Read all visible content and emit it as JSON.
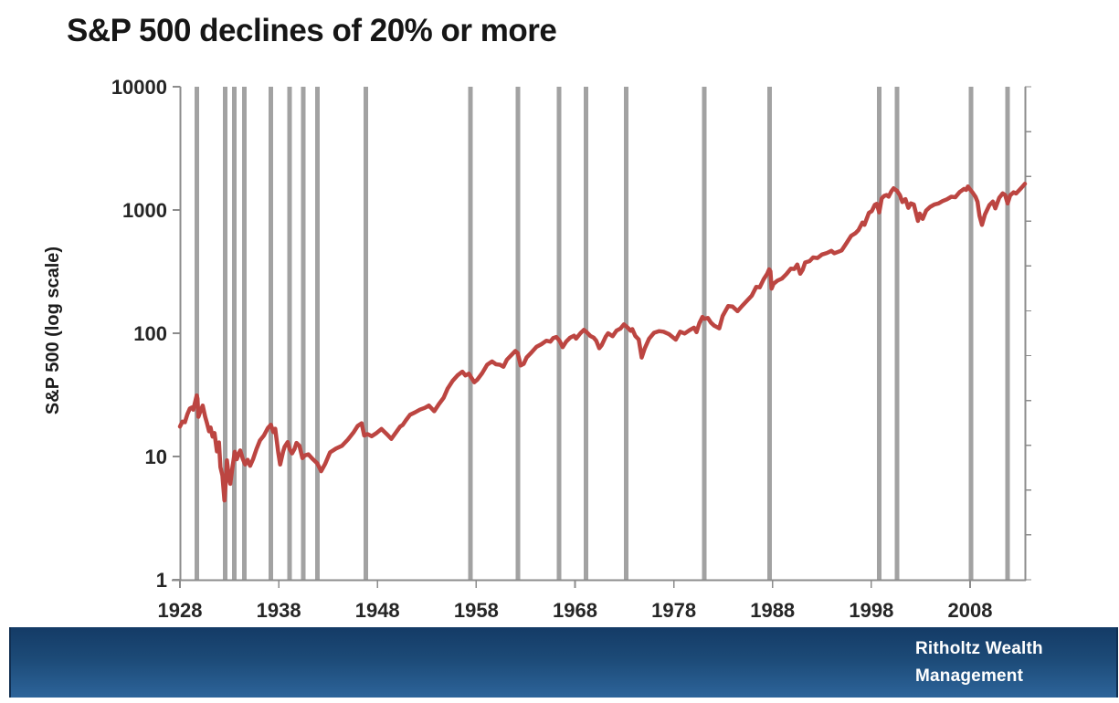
{
  "title": "S&P 500 declines of 20% or more",
  "footer": {
    "brand_line1": "Ritholtz Wealth",
    "brand_line2": "Management"
  },
  "colors": {
    "line": "#bc4541",
    "bear_band": "#a2a2a2",
    "axis": "#8c8c8c",
    "tick_label": "#262626",
    "footer_top": "#143b66",
    "footer_bottom": "#2d649a",
    "footer_text": "#ffffff"
  },
  "chart_data": {
    "type": "line",
    "title": "S&P 500 declines of 20% or more",
    "xlabel": "",
    "ylabel": "S&P 500 (log scale)",
    "y_scale": "log",
    "ylim": [
      1,
      10000
    ],
    "y_ticks": [
      10000,
      1000,
      100,
      10,
      1
    ],
    "x_ticks": [
      1928,
      1938,
      1948,
      1958,
      1968,
      1978,
      1988,
      1998,
      2008
    ],
    "x_range": [
      1928,
      2013.55
    ],
    "grid": false,
    "legend": false,
    "decline_markers": {
      "label": "declines of 20% or more",
      "years": [
        1929.7,
        1932.6,
        1933.5,
        1934.5,
        1937.2,
        1939.1,
        1940.5,
        1941.9,
        1946.8,
        1957.4,
        1962.2,
        1966.4,
        1969.1,
        1973.2,
        1981.1,
        1987.7,
        1998.8,
        2000.6,
        2008.1,
        2011.8
      ]
    },
    "series": [
      {
        "name": "S&P 500",
        "points": [
          [
            1928.0,
            17.5
          ],
          [
            1928.25,
            19.2
          ],
          [
            1928.5,
            19.0
          ],
          [
            1928.75,
            22.0
          ],
          [
            1929.0,
            24.5
          ],
          [
            1929.2,
            25.0
          ],
          [
            1929.35,
            24.0
          ],
          [
            1929.55,
            28.0
          ],
          [
            1929.7,
            31.3
          ],
          [
            1929.78,
            29.5
          ],
          [
            1929.87,
            21.0
          ],
          [
            1930.0,
            22.5
          ],
          [
            1930.3,
            25.9
          ],
          [
            1930.55,
            21.0
          ],
          [
            1930.75,
            18.5
          ],
          [
            1930.95,
            16.0
          ],
          [
            1931.1,
            17.2
          ],
          [
            1931.3,
            14.5
          ],
          [
            1931.5,
            15.5
          ],
          [
            1931.75,
            11.0
          ],
          [
            1931.95,
            13.0
          ],
          [
            1932.1,
            8.2
          ],
          [
            1932.3,
            7.0
          ],
          [
            1932.5,
            4.4
          ],
          [
            1932.65,
            6.5
          ],
          [
            1932.75,
            9.3
          ],
          [
            1932.95,
            6.8
          ],
          [
            1933.1,
            6.0
          ],
          [
            1933.3,
            8.0
          ],
          [
            1933.55,
            10.9
          ],
          [
            1933.75,
            9.5
          ],
          [
            1933.95,
            10.5
          ],
          [
            1934.1,
            11.2
          ],
          [
            1934.35,
            9.6
          ],
          [
            1934.6,
            8.6
          ],
          [
            1934.85,
            9.4
          ],
          [
            1935.1,
            8.4
          ],
          [
            1935.4,
            9.5
          ],
          [
            1935.75,
            11.5
          ],
          [
            1936.1,
            13.5
          ],
          [
            1936.5,
            14.8
          ],
          [
            1936.9,
            17.0
          ],
          [
            1937.2,
            18.1
          ],
          [
            1937.45,
            15.8
          ],
          [
            1937.65,
            16.8
          ],
          [
            1937.95,
            10.8
          ],
          [
            1938.15,
            8.6
          ],
          [
            1938.45,
            11.0
          ],
          [
            1938.6,
            12.0
          ],
          [
            1938.9,
            13.1
          ],
          [
            1939.1,
            11.5
          ],
          [
            1939.35,
            10.6
          ],
          [
            1939.6,
            11.5
          ],
          [
            1939.8,
            12.9
          ],
          [
            1940.1,
            12.2
          ],
          [
            1940.4,
            9.7
          ],
          [
            1940.65,
            10.2
          ],
          [
            1941.0,
            10.4
          ],
          [
            1941.4,
            9.6
          ],
          [
            1941.9,
            8.8
          ],
          [
            1942.3,
            7.6
          ],
          [
            1942.7,
            8.7
          ],
          [
            1943.2,
            10.8
          ],
          [
            1943.8,
            11.6
          ],
          [
            1944.4,
            12.2
          ],
          [
            1945.0,
            13.7
          ],
          [
            1945.6,
            15.8
          ],
          [
            1946.0,
            17.7
          ],
          [
            1946.4,
            18.6
          ],
          [
            1946.65,
            14.8
          ],
          [
            1947.0,
            15.2
          ],
          [
            1947.4,
            14.6
          ],
          [
            1947.9,
            15.5
          ],
          [
            1948.4,
            16.7
          ],
          [
            1948.9,
            15.3
          ],
          [
            1949.4,
            13.9
          ],
          [
            1949.9,
            15.8
          ],
          [
            1950.3,
            17.5
          ],
          [
            1950.55,
            18.0
          ],
          [
            1950.9,
            19.8
          ],
          [
            1951.3,
            21.8
          ],
          [
            1951.8,
            22.8
          ],
          [
            1952.3,
            24.0
          ],
          [
            1952.8,
            24.8
          ],
          [
            1953.2,
            25.9
          ],
          [
            1953.75,
            23.3
          ],
          [
            1954.2,
            26.5
          ],
          [
            1954.7,
            30.0
          ],
          [
            1955.1,
            35.5
          ],
          [
            1955.6,
            41.0
          ],
          [
            1956.1,
            45.5
          ],
          [
            1956.6,
            48.8
          ],
          [
            1956.9,
            45.5
          ],
          [
            1957.25,
            47.0
          ],
          [
            1957.8,
            40.0
          ],
          [
            1958.1,
            42.0
          ],
          [
            1958.6,
            47.5
          ],
          [
            1959.1,
            55.5
          ],
          [
            1959.6,
            59.0
          ],
          [
            1960.0,
            56.0
          ],
          [
            1960.4,
            55.5
          ],
          [
            1960.75,
            53.5
          ],
          [
            1961.1,
            61.0
          ],
          [
            1961.55,
            66.5
          ],
          [
            1961.95,
            71.7
          ],
          [
            1962.2,
            69.0
          ],
          [
            1962.5,
            54.8
          ],
          [
            1962.8,
            56.5
          ],
          [
            1963.1,
            63.5
          ],
          [
            1963.6,
            70.0
          ],
          [
            1964.1,
            77.5
          ],
          [
            1964.6,
            81.5
          ],
          [
            1965.1,
            87.0
          ],
          [
            1965.5,
            85.5
          ],
          [
            1965.8,
            91.5
          ],
          [
            1966.1,
            93.2
          ],
          [
            1966.45,
            86.5
          ],
          [
            1966.75,
            77.1
          ],
          [
            1967.1,
            85.5
          ],
          [
            1967.5,
            92.0
          ],
          [
            1967.9,
            95.5
          ],
          [
            1968.1,
            90.5
          ],
          [
            1968.55,
            100.0
          ],
          [
            1968.9,
            106.5
          ],
          [
            1969.2,
            101.5
          ],
          [
            1969.55,
            95.0
          ],
          [
            1969.9,
            92.0
          ],
          [
            1970.15,
            87.0
          ],
          [
            1970.45,
            75.6
          ],
          [
            1970.7,
            80.0
          ],
          [
            1971.1,
            93.5
          ],
          [
            1971.35,
            100.0
          ],
          [
            1971.8,
            94.5
          ],
          [
            1972.2,
            105.0
          ],
          [
            1972.6,
            109.0
          ],
          [
            1972.95,
            118.0
          ],
          [
            1973.3,
            111.5
          ],
          [
            1973.65,
            104.5
          ],
          [
            1973.8,
            108.0
          ],
          [
            1974.1,
            95.0
          ],
          [
            1974.45,
            89.0
          ],
          [
            1974.75,
            63.5
          ],
          [
            1975.05,
            75.0
          ],
          [
            1975.5,
            90.5
          ],
          [
            1976.0,
            100.9
          ],
          [
            1976.5,
            104.0
          ],
          [
            1976.95,
            103.0
          ],
          [
            1977.5,
            98.5
          ],
          [
            1978.2,
            88.7
          ],
          [
            1978.65,
            103.0
          ],
          [
            1979.1,
            99.5
          ],
          [
            1979.6,
            106.0
          ],
          [
            1980.05,
            110.9
          ],
          [
            1980.3,
            102.1
          ],
          [
            1980.6,
            121.0
          ],
          [
            1980.9,
            135.7
          ],
          [
            1981.1,
            131.0
          ],
          [
            1981.45,
            133.0
          ],
          [
            1981.75,
            122.0
          ],
          [
            1982.1,
            115.0
          ],
          [
            1982.6,
            109.6
          ],
          [
            1982.95,
            138.0
          ],
          [
            1983.5,
            166.0
          ],
          [
            1983.95,
            164.5
          ],
          [
            1984.45,
            151.0
          ],
          [
            1984.9,
            166.0
          ],
          [
            1985.4,
            183.0
          ],
          [
            1985.9,
            202.0
          ],
          [
            1986.35,
            238.0
          ],
          [
            1986.7,
            236.0
          ],
          [
            1987.1,
            274.0
          ],
          [
            1987.45,
            303.0
          ],
          [
            1987.65,
            329.8
          ],
          [
            1987.78,
            318.0
          ],
          [
            1987.9,
            230.3
          ],
          [
            1988.1,
            252.0
          ],
          [
            1988.5,
            267.0
          ],
          [
            1988.95,
            278.0
          ],
          [
            1989.4,
            302.0
          ],
          [
            1989.85,
            334.0
          ],
          [
            1990.2,
            332.0
          ],
          [
            1990.5,
            361.2
          ],
          [
            1990.8,
            304.0
          ],
          [
            1991.05,
            327.0
          ],
          [
            1991.3,
            375.0
          ],
          [
            1991.75,
            385.0
          ],
          [
            1992.1,
            412.0
          ],
          [
            1992.55,
            408.0
          ],
          [
            1993.0,
            435.0
          ],
          [
            1993.5,
            448.0
          ],
          [
            1993.95,
            466.0
          ],
          [
            1994.25,
            445.8
          ],
          [
            1994.65,
            458.0
          ],
          [
            1995.0,
            470.0
          ],
          [
            1995.45,
            533.0
          ],
          [
            1995.95,
            615.9
          ],
          [
            1996.4,
            650.0
          ],
          [
            1996.7,
            687.0
          ],
          [
            1997.1,
            790.0
          ],
          [
            1997.3,
            757.0
          ],
          [
            1997.75,
            947.0
          ],
          [
            1998.05,
            980.0
          ],
          [
            1998.35,
            1100.0
          ],
          [
            1998.55,
            1120.7
          ],
          [
            1998.8,
            957.3
          ],
          [
            1999.05,
            1240.0
          ],
          [
            1999.3,
            1300.0
          ],
          [
            1999.55,
            1322.0
          ],
          [
            1999.75,
            1282.0
          ],
          [
            2000.05,
            1425.0
          ],
          [
            2000.25,
            1498.6
          ],
          [
            2000.6,
            1430.0
          ],
          [
            2000.9,
            1315.0
          ],
          [
            2001.15,
            1160.0
          ],
          [
            2001.45,
            1225.0
          ],
          [
            2001.75,
            1040.9
          ],
          [
            2002.0,
            1130.0
          ],
          [
            2002.3,
            1107.0
          ],
          [
            2002.72,
            815.3
          ],
          [
            2002.9,
            936.0
          ],
          [
            2003.2,
            848.2
          ],
          [
            2003.55,
            990.0
          ],
          [
            2003.95,
            1060.0
          ],
          [
            2004.4,
            1110.0
          ],
          [
            2004.8,
            1130.0
          ],
          [
            2005.2,
            1180.0
          ],
          [
            2005.65,
            1220.0
          ],
          [
            2006.1,
            1280.0
          ],
          [
            2006.5,
            1270.0
          ],
          [
            2006.95,
            1400.0
          ],
          [
            2007.4,
            1482.0
          ],
          [
            2007.6,
            1455.0
          ],
          [
            2007.78,
            1549.0
          ],
          [
            2008.0,
            1468.0
          ],
          [
            2008.25,
            1385.0
          ],
          [
            2008.55,
            1280.0
          ],
          [
            2008.75,
            1166.0
          ],
          [
            2008.95,
            896.0
          ],
          [
            2009.2,
            757.0
          ],
          [
            2009.5,
            919.0
          ],
          [
            2009.95,
            1095.0
          ],
          [
            2010.3,
            1169.0
          ],
          [
            2010.55,
            1030.7
          ],
          [
            2010.95,
            1257.0
          ],
          [
            2011.3,
            1363.6
          ],
          [
            2011.55,
            1320.0
          ],
          [
            2011.8,
            1131.4
          ],
          [
            2012.05,
            1312.0
          ],
          [
            2012.4,
            1390.0
          ],
          [
            2012.65,
            1362.0
          ],
          [
            2012.95,
            1440.0
          ],
          [
            2013.2,
            1514.0
          ],
          [
            2013.55,
            1631.0
          ]
        ]
      }
    ]
  }
}
